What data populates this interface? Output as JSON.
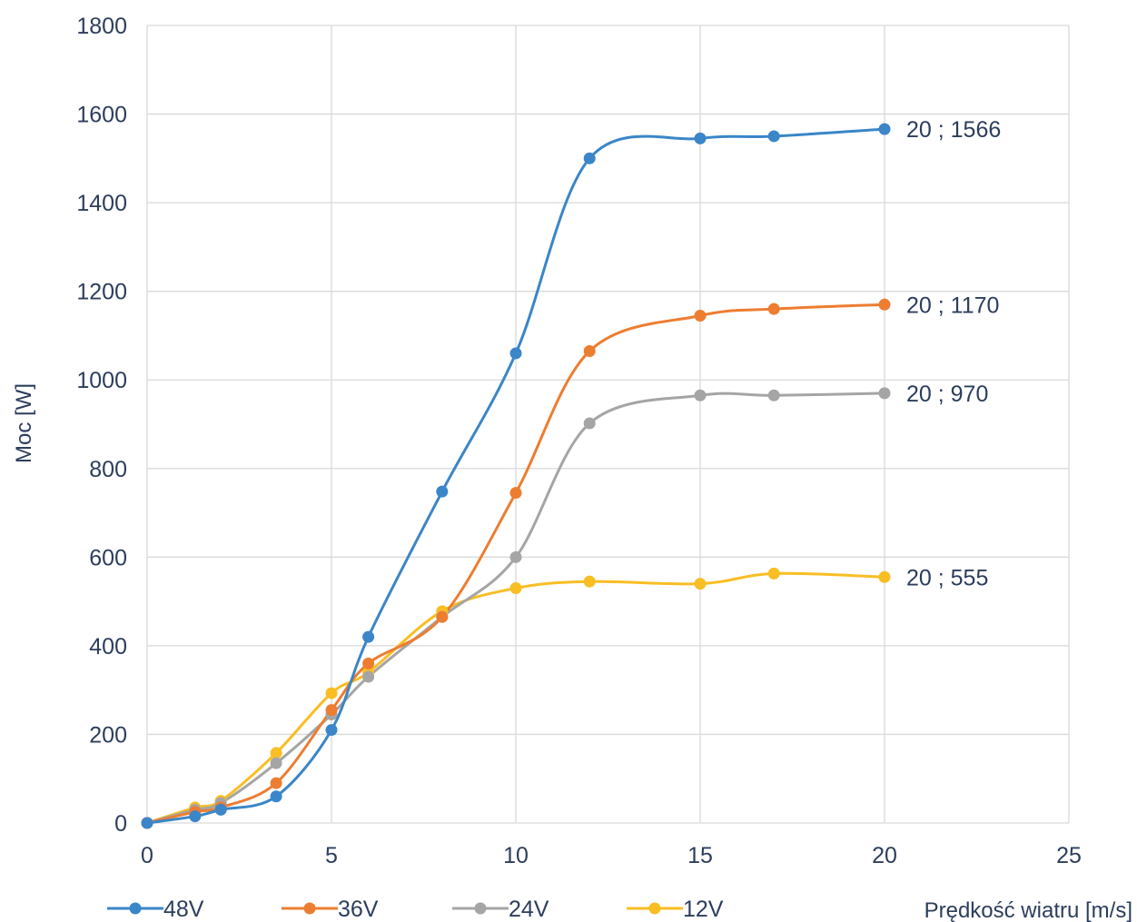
{
  "chart_data": {
    "type": "line",
    "title": "",
    "xlabel": "Prędkość wiatru [m/s]",
    "ylabel": "Moc [W]",
    "xlim": [
      0,
      25
    ],
    "ylim": [
      0,
      1800
    ],
    "x_ticks": [
      0,
      5,
      10,
      15,
      20,
      25
    ],
    "y_ticks": [
      0,
      200,
      400,
      600,
      800,
      1000,
      1200,
      1400,
      1600,
      1800
    ],
    "grid": true,
    "smooth": true,
    "legend_position": "bottom",
    "series": [
      {
        "name": "48V",
        "color": "#3a86c8",
        "points": [
          [
            0,
            0
          ],
          [
            1.3,
            15
          ],
          [
            2,
            30
          ],
          [
            3.5,
            60
          ],
          [
            5,
            210
          ],
          [
            6,
            420
          ],
          [
            8,
            748
          ],
          [
            10,
            1060
          ],
          [
            12,
            1500
          ],
          [
            15,
            1545
          ],
          [
            17,
            1550
          ],
          [
            20,
            1566
          ]
        ],
        "end_label": "20 ; 1566"
      },
      {
        "name": "36V",
        "color": "#ed7d31",
        "points": [
          [
            0,
            0
          ],
          [
            1.3,
            25
          ],
          [
            2,
            35
          ],
          [
            3.5,
            90
          ],
          [
            5,
            255
          ],
          [
            6,
            360
          ],
          [
            8,
            465
          ],
          [
            10,
            745
          ],
          [
            12,
            1065
          ],
          [
            15,
            1145
          ],
          [
            17,
            1160
          ],
          [
            20,
            1170
          ]
        ],
        "end_label": "20 ; 1170"
      },
      {
        "name": "24V",
        "color": "#a5a5a5",
        "points": [
          [
            0,
            0
          ],
          [
            1.3,
            30
          ],
          [
            2,
            45
          ],
          [
            3.5,
            135
          ],
          [
            5,
            245
          ],
          [
            6,
            330
          ],
          [
            8,
            465
          ],
          [
            10,
            600
          ],
          [
            12,
            902
          ],
          [
            15,
            965
          ],
          [
            17,
            965
          ],
          [
            20,
            970
          ]
        ],
        "end_label": "20 ; 970"
      },
      {
        "name": "12V",
        "color": "#f8be23",
        "points": [
          [
            0,
            0
          ],
          [
            1.3,
            35
          ],
          [
            2,
            50
          ],
          [
            3.5,
            158
          ],
          [
            5,
            293
          ],
          [
            6,
            340
          ],
          [
            8,
            478
          ],
          [
            10,
            530
          ],
          [
            12,
            545
          ],
          [
            15,
            540
          ],
          [
            17,
            563
          ],
          [
            20,
            555
          ]
        ],
        "end_label": "20 ; 555"
      }
    ]
  }
}
